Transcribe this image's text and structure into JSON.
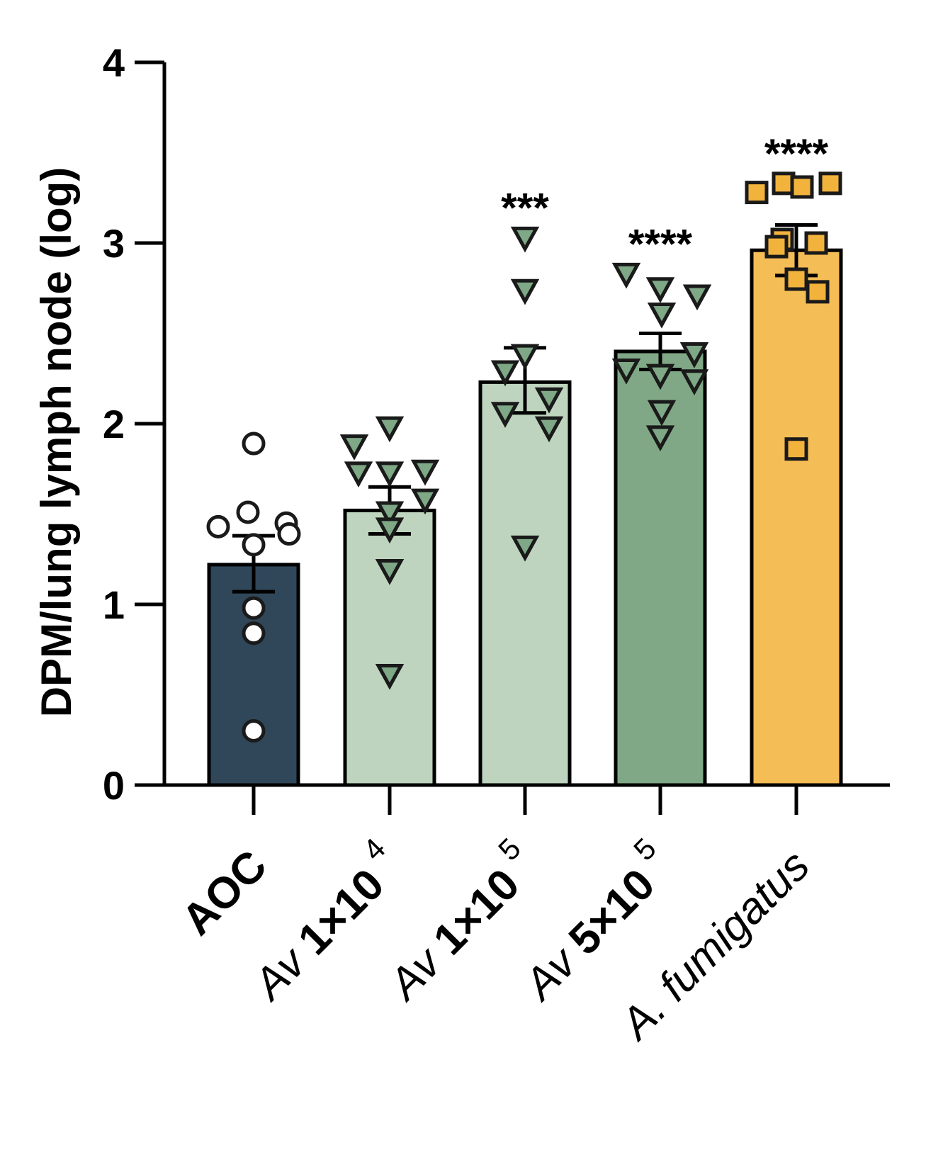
{
  "chart_data": {
    "type": "bar",
    "ylabel": "DPM/lung lymph node (log)",
    "ylim": [
      0,
      4
    ],
    "yticks": [
      "0",
      "1",
      "2",
      "3",
      "4"
    ],
    "colors": {
      "axis": "#000000",
      "point_stroke": "#1a1a1a"
    },
    "groups": [
      {
        "id": "aoc",
        "label_parts": [
          {
            "text": "AOC",
            "style": "bold"
          }
        ],
        "mean": 1.22,
        "sem_low": 1.07,
        "sem_high": 1.38,
        "bar_color": "#304759",
        "marker": "circle",
        "marker_fill": "#ffffff",
        "significance": "",
        "points": [
          1.89,
          1.51,
          1.45,
          1.43,
          1.39,
          1.33,
          0.98,
          0.84,
          0.3
        ]
      },
      {
        "id": "av1e4",
        "label_parts": [
          {
            "text": "Av ",
            "style": "italic"
          },
          {
            "text": "1×10",
            "style": "bold"
          },
          {
            "text": "4",
            "style": "sup"
          }
        ],
        "mean": 1.52,
        "sem_low": 1.39,
        "sem_high": 1.65,
        "bar_color": "#bed4be",
        "marker": "triangle-down",
        "marker_fill": "#7ea886",
        "significance": "",
        "points": [
          1.98,
          1.88,
          1.74,
          1.73,
          1.73,
          1.58,
          1.51,
          1.42,
          1.19,
          0.61
        ]
      },
      {
        "id": "av1e5",
        "label_parts": [
          {
            "text": "Av ",
            "style": "italic"
          },
          {
            "text": "1×10",
            "style": "bold"
          },
          {
            "text": "5",
            "style": "sup"
          }
        ],
        "mean": 2.23,
        "sem_low": 2.06,
        "sem_high": 2.42,
        "bar_color": "#bed4be",
        "marker": "triangle-down",
        "marker_fill": "#7ea886",
        "significance": "***",
        "points": [
          3.03,
          2.74,
          2.38,
          2.29,
          2.14,
          2.06,
          1.98,
          1.32
        ]
      },
      {
        "id": "av5e5",
        "label_parts": [
          {
            "text": "Av ",
            "style": "italic"
          },
          {
            "text": "5×10",
            "style": "bold"
          },
          {
            "text": "5",
            "style": "sup"
          }
        ],
        "mean": 2.4,
        "sem_low": 2.3,
        "sem_high": 2.5,
        "bar_color": "#80a886",
        "marker": "triangle-down",
        "marker_fill": "#7ea886",
        "significance": "****",
        "points": [
          2.83,
          2.75,
          2.71,
          2.61,
          2.39,
          2.3,
          2.27,
          2.24,
          2.07,
          1.93
        ]
      },
      {
        "id": "afum",
        "label_parts": [
          {
            "text": "A. fumigatus",
            "style": "italic"
          }
        ],
        "mean": 2.96,
        "sem_low": 2.82,
        "sem_high": 3.1,
        "bar_color": "#f5bd56",
        "marker": "square",
        "marker_fill": "#f2b33d",
        "significance": "****",
        "points": [
          3.33,
          3.33,
          3.31,
          3.28,
          3.02,
          3.0,
          2.98,
          2.8,
          2.73,
          1.86
        ]
      }
    ]
  }
}
